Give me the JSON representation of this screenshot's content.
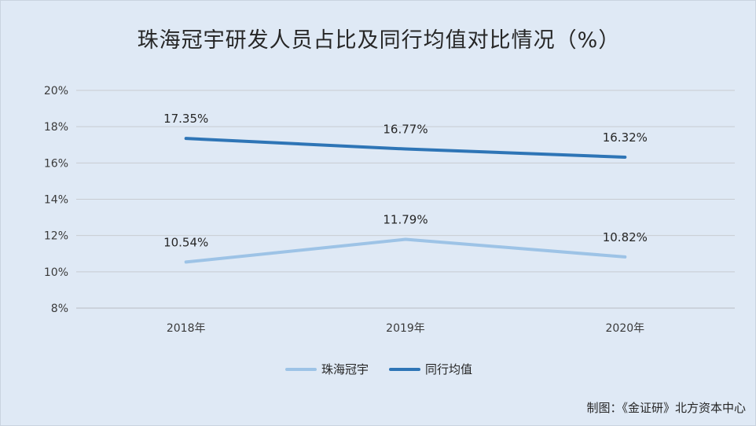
{
  "title": "珠海冠宇研发人员占比及同行均值对比情况（%）",
  "source": "制图：《金证研》北方资本中心",
  "chart_data": {
    "type": "line",
    "categories": [
      "2018年",
      "2019年",
      "2020年"
    ],
    "ylim": [
      8,
      20
    ],
    "yticks": [
      "8%",
      "10%",
      "12%",
      "14%",
      "16%",
      "18%",
      "20%"
    ],
    "grid": true,
    "legend_position": "bottom",
    "series": [
      {
        "name": "珠海冠宇",
        "values": [
          10.54,
          11.79,
          10.82
        ],
        "labels": [
          "10.54%",
          "11.79%",
          "10.82%"
        ],
        "color": "#9dc3e6"
      },
      {
        "name": "同行均值",
        "values": [
          17.35,
          16.77,
          16.32
        ],
        "labels": [
          "17.35%",
          "16.77%",
          "16.32%"
        ],
        "color": "#2e75b6"
      }
    ]
  }
}
